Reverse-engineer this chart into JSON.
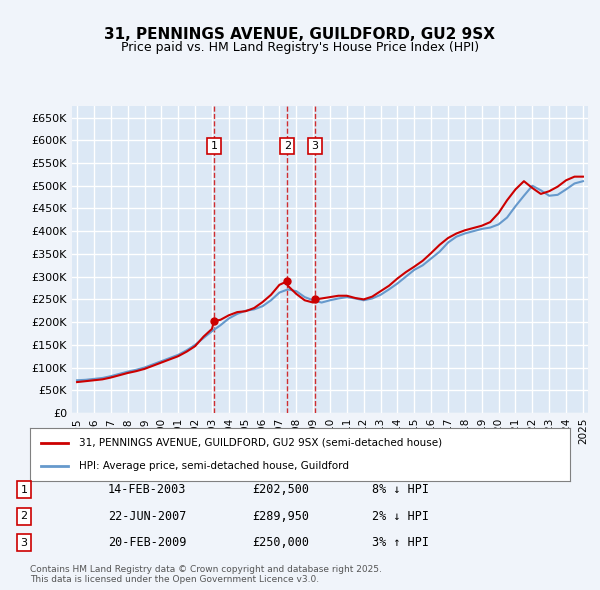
{
  "title": "31, PENNINGS AVENUE, GUILDFORD, GU2 9SX",
  "subtitle": "Price paid vs. HM Land Registry's House Price Index (HPI)",
  "ylabel": "",
  "background_color": "#f0f4fa",
  "plot_bg_color": "#dce8f5",
  "grid_color": "#ffffff",
  "ylim": [
    0,
    675000
  ],
  "yticks": [
    0,
    50000,
    100000,
    150000,
    200000,
    250000,
    300000,
    350000,
    400000,
    450000,
    500000,
    550000,
    600000,
    650000
  ],
  "ytick_labels": [
    "£0",
    "£50K",
    "£100K",
    "£150K",
    "£200K",
    "£250K",
    "£300K",
    "£350K",
    "£400K",
    "£450K",
    "£500K",
    "£550K",
    "£600K",
    "£650K"
  ],
  "transactions": [
    {
      "num": 1,
      "date": "14-FEB-2003",
      "price": 202500,
      "year": 2003.12,
      "pct": "8%",
      "dir": "↓"
    },
    {
      "num": 2,
      "date": "22-JUN-2007",
      "price": 289950,
      "year": 2007.47,
      "pct": "2%",
      "dir": "↓"
    },
    {
      "num": 3,
      "date": "20-FEB-2009",
      "price": 250000,
      "year": 2009.12,
      "pct": "3%",
      "dir": "↑"
    }
  ],
  "legend_property": "31, PENNINGS AVENUE, GUILDFORD, GU2 9SX (semi-detached house)",
  "legend_hpi": "HPI: Average price, semi-detached house, Guildford",
  "footer": "Contains HM Land Registry data © Crown copyright and database right 2025.\nThis data is licensed under the Open Government Licence v3.0.",
  "property_color": "#cc0000",
  "hpi_color": "#6699cc",
  "hpi_years": [
    1995,
    1995.5,
    1996,
    1996.5,
    1997,
    1997.5,
    1998,
    1998.5,
    1999,
    1999.5,
    2000,
    2000.5,
    2001,
    2001.5,
    2002,
    2002.5,
    2003,
    2003.5,
    2004,
    2004.5,
    2005,
    2005.5,
    2006,
    2006.5,
    2007,
    2007.5,
    2008,
    2008.5,
    2009,
    2009.5,
    2010,
    2010.5,
    2011,
    2011.5,
    2012,
    2012.5,
    2013,
    2013.5,
    2014,
    2014.5,
    2015,
    2015.5,
    2016,
    2016.5,
    2017,
    2017.5,
    2018,
    2018.5,
    2019,
    2019.5,
    2020,
    2020.5,
    2021,
    2021.5,
    2022,
    2022.5,
    2023,
    2023.5,
    2024,
    2024.5,
    2025
  ],
  "hpi_values": [
    72000,
    73000,
    75000,
    77000,
    81000,
    86000,
    91000,
    95000,
    100000,
    107000,
    114000,
    121000,
    128000,
    138000,
    150000,
    165000,
    180000,
    193000,
    208000,
    218000,
    225000,
    228000,
    235000,
    248000,
    265000,
    272000,
    268000,
    255000,
    248000,
    243000,
    248000,
    252000,
    255000,
    252000,
    248000,
    252000,
    260000,
    272000,
    285000,
    300000,
    315000,
    325000,
    340000,
    355000,
    375000,
    388000,
    395000,
    400000,
    405000,
    408000,
    415000,
    430000,
    455000,
    478000,
    500000,
    490000,
    478000,
    480000,
    492000,
    505000,
    510000
  ],
  "prop_years": [
    1995,
    1995.5,
    1996,
    1996.5,
    1997,
    1997.5,
    1998,
    1998.5,
    1999,
    1999.5,
    2000,
    2000.5,
    2001,
    2001.5,
    2002,
    2002.5,
    2003,
    2003.12,
    2003.5,
    2004,
    2004.5,
    2005,
    2005.5,
    2006,
    2006.5,
    2007,
    2007.47,
    2007.5,
    2008,
    2008.5,
    2009,
    2009.12,
    2009.5,
    2010,
    2010.5,
    2011,
    2011.5,
    2012,
    2012.5,
    2013,
    2013.5,
    2014,
    2014.5,
    2015,
    2015.5,
    2016,
    2016.5,
    2017,
    2017.5,
    2018,
    2018.5,
    2019,
    2019.5,
    2020,
    2020.5,
    2021,
    2021.5,
    2022,
    2022.5,
    2023,
    2023.5,
    2024,
    2024.5,
    2025
  ],
  "prop_values": [
    68000,
    70000,
    72000,
    74000,
    78000,
    83000,
    88000,
    92000,
    97000,
    104000,
    111000,
    118000,
    125000,
    135000,
    147000,
    168000,
    185000,
    202500,
    205000,
    215000,
    222000,
    224000,
    231000,
    244000,
    260000,
    282000,
    289950,
    280000,
    262000,
    248000,
    243000,
    250000,
    252000,
    255000,
    258000,
    258000,
    253000,
    250000,
    256000,
    268000,
    280000,
    296000,
    310000,
    322000,
    335000,
    352000,
    370000,
    385000,
    395000,
    402000,
    407000,
    412000,
    420000,
    440000,
    468000,
    492000,
    510000,
    495000,
    482000,
    488000,
    498000,
    512000,
    520000,
    520000
  ],
  "xtick_years": [
    1995,
    1996,
    1997,
    1998,
    1999,
    2000,
    2001,
    2002,
    2003,
    2004,
    2005,
    2006,
    2007,
    2008,
    2009,
    2010,
    2011,
    2012,
    2013,
    2014,
    2015,
    2016,
    2017,
    2018,
    2019,
    2020,
    2021,
    2022,
    2023,
    2024,
    2025
  ]
}
